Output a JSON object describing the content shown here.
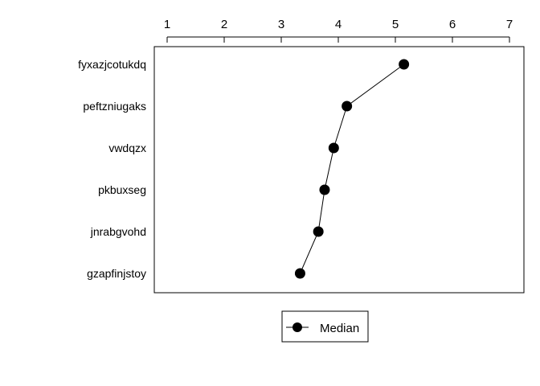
{
  "chart_data": {
    "type": "line",
    "orientation": "horizontal",
    "x_axis_position": "top",
    "xlim": [
      1,
      7
    ],
    "xticks": [
      1,
      2,
      3,
      4,
      5,
      6,
      7
    ],
    "tick_labels": [
      "1",
      "2",
      "3",
      "4",
      "5",
      "6",
      "7"
    ],
    "categories": [
      "fyxazjcotukdq",
      "peftzniugaks",
      "vwdqzx",
      "pkbuxseg",
      "jnrabgvohd",
      "gzapfinjstoy"
    ],
    "series": [
      {
        "name": "Median",
        "values": [
          5.15,
          4.15,
          3.92,
          3.76,
          3.65,
          3.33
        ],
        "marker": "filled-circle",
        "color": "#000000"
      }
    ],
    "legend": {
      "placement": "bottom-center",
      "entries": [
        "Median"
      ]
    },
    "grid": false
  }
}
